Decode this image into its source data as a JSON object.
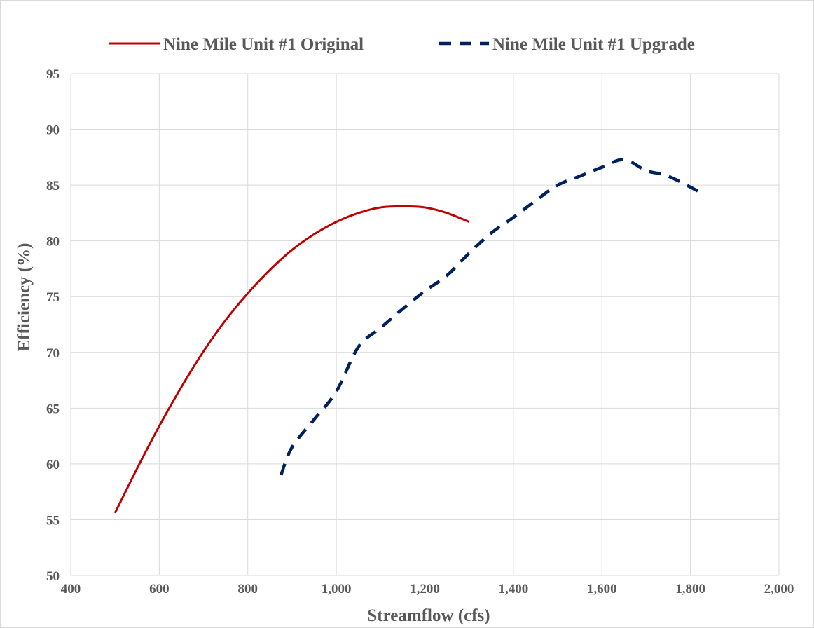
{
  "chart_data": {
    "type": "line",
    "title": "",
    "xlabel": "Streamflow (cfs)",
    "ylabel": "Efficiency (%)",
    "xlim": [
      400,
      2000
    ],
    "ylim": [
      50,
      95
    ],
    "x_ticks": [
      400,
      600,
      800,
      1000,
      1200,
      1400,
      1600,
      1800,
      2000
    ],
    "x_tick_labels": [
      "400",
      "600",
      "800",
      "1,000",
      "1,200",
      "1,400",
      "1,600",
      "1,800",
      "2,000"
    ],
    "y_ticks": [
      50,
      55,
      60,
      65,
      70,
      75,
      80,
      85,
      90,
      95
    ],
    "y_tick_labels": [
      "50",
      "55",
      "60",
      "65",
      "70",
      "75",
      "80",
      "85",
      "90",
      "95"
    ],
    "grid": true,
    "legend_position": "top",
    "series": [
      {
        "name": "Nine Mile Unit #1 Original",
        "color": "#c00000",
        "style": "solid",
        "x": [
          500,
          550,
          600,
          650,
          700,
          750,
          800,
          850,
          900,
          950,
          1000,
          1050,
          1100,
          1150,
          1200,
          1250,
          1300
        ],
        "y": [
          55.6,
          59.6,
          63.4,
          66.9,
          70.1,
          72.9,
          75.3,
          77.4,
          79.2,
          80.6,
          81.7,
          82.5,
          83.0,
          83.1,
          83.0,
          82.5,
          81.7
        ]
      },
      {
        "name": "Nine Mile Unit #1 Upgrade",
        "color": "#002060",
        "style": "dashed",
        "x": [
          875,
          900,
          950,
          1000,
          1050,
          1100,
          1150,
          1200,
          1250,
          1300,
          1350,
          1400,
          1450,
          1500,
          1550,
          1600,
          1650,
          1700,
          1750,
          1825
        ],
        "y": [
          59.0,
          61.5,
          64.0,
          66.5,
          70.5,
          72.2,
          73.9,
          75.5,
          76.9,
          78.9,
          80.7,
          82.1,
          83.6,
          85.0,
          85.8,
          86.6,
          87.3,
          86.3,
          85.8,
          84.3
        ]
      }
    ]
  }
}
